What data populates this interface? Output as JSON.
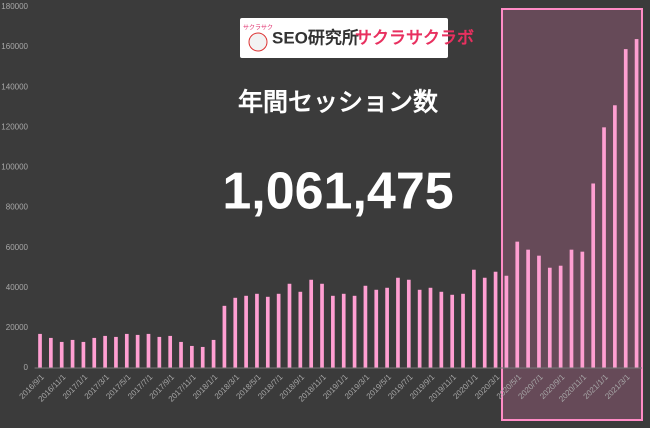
{
  "chart_data": {
    "type": "bar",
    "title": "年間セッション数",
    "annotation": "1,061,475",
    "logo": {
      "badge": "サクラサク",
      "name": "SEO研究所",
      "brand": "サクラサクラボ"
    },
    "categories": [
      "2016/9/1",
      null,
      "2016/11/1",
      null,
      "2017/1/1",
      null,
      "2017/3/1",
      null,
      "2017/5/1",
      null,
      "2017/7/1",
      null,
      "2017/9/1",
      null,
      "2017/11/1",
      null,
      "2018/1/1",
      null,
      "2018/3/1",
      null,
      "2018/5/1",
      null,
      "2018/7/1",
      null,
      "2018/9/1",
      null,
      "2018/11/1",
      null,
      "2019/1/1",
      null,
      "2019/3/1",
      null,
      "2019/5/1",
      null,
      "2019/7/1",
      null,
      "2019/9/1",
      null,
      "2019/11/1",
      null,
      "2020/1/1",
      null,
      "2020/3/1",
      null,
      "2020/5/1",
      null,
      "2020/7/1",
      null,
      "2020/9/1",
      null,
      "2020/11/1",
      null,
      "2021/1/1",
      null,
      "2021/3/1",
      null
    ],
    "values": [
      17000,
      15000,
      13000,
      14000,
      13000,
      15000,
      16000,
      15500,
      17000,
      16500,
      17000,
      15500,
      16000,
      13000,
      11000,
      10500,
      14000,
      31000,
      35000,
      36000,
      37000,
      35500,
      37000,
      42000,
      38000,
      44000,
      42000,
      36000,
      37000,
      36000,
      41000,
      39000,
      40000,
      45000,
      44000,
      39000,
      40000,
      38000,
      36500,
      37000,
      49000,
      45000,
      48000,
      46000,
      63000,
      59000,
      56000,
      50000,
      51000,
      59000,
      58000,
      92000,
      120000,
      131000,
      159000,
      164000
    ],
    "color": "#ff9fd2",
    "ylim": [
      0,
      180000
    ],
    "yticks": [
      0,
      20000,
      40000,
      60000,
      80000,
      100000,
      120000,
      140000,
      160000,
      180000
    ],
    "grid": false
  }
}
